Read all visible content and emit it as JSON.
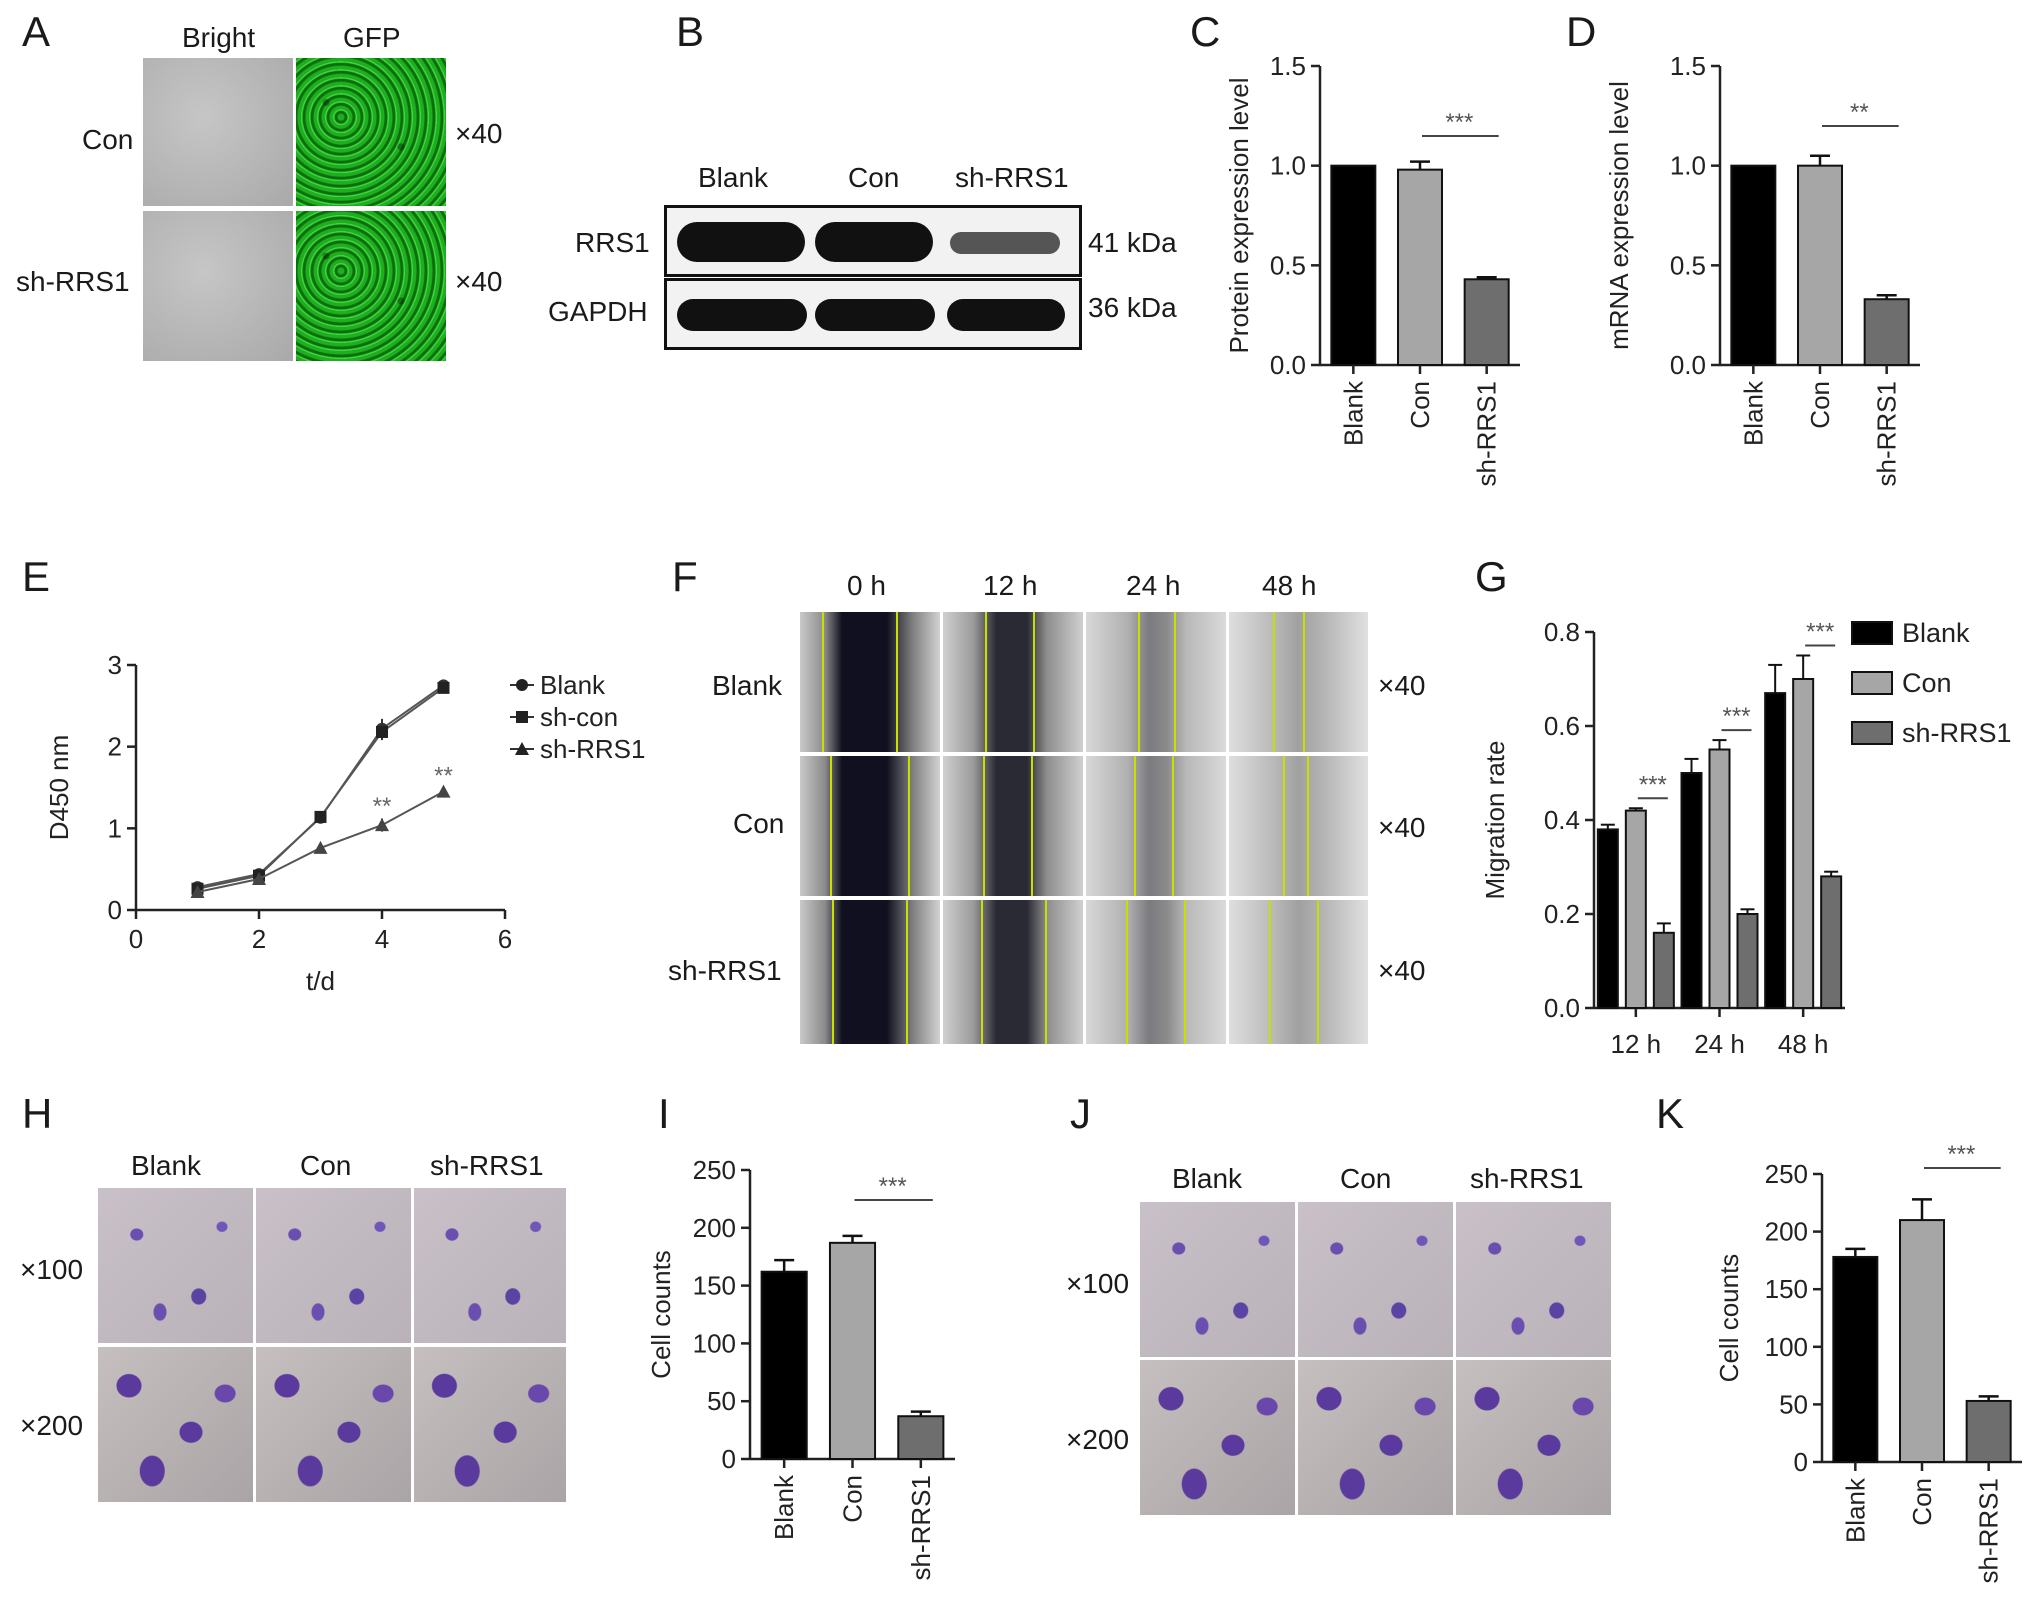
{
  "panel_letters": [
    "A",
    "B",
    "C",
    "D",
    "E",
    "F",
    "G",
    "H",
    "I",
    "J",
    "K"
  ],
  "A": {
    "col_headers": [
      "Bright",
      "GFP"
    ],
    "row_labels": [
      "Con",
      "sh-RRS1"
    ],
    "magnification": [
      "×40",
      "×40"
    ]
  },
  "B": {
    "lane_labels": [
      "Blank",
      "Con",
      "sh-RRS1"
    ],
    "protein_labels": [
      "RRS1",
      "GAPDH"
    ],
    "kda_labels": [
      "41 kDa",
      "36 kDa"
    ]
  },
  "F": {
    "col_headers": [
      "0 h",
      "12 h",
      "24 h",
      "48 h"
    ],
    "row_labels": [
      "Blank",
      "Con",
      "sh-RRS1"
    ],
    "magnification": [
      "×40",
      "×40",
      "×40"
    ]
  },
  "H": {
    "col_headers": [
      "Blank",
      "Con",
      "sh-RRS1"
    ],
    "row_labels": [
      "×100",
      "×200"
    ]
  },
  "J": {
    "col_headers": [
      "Blank",
      "Con",
      "sh-RRS1"
    ],
    "row_labels": [
      "×100",
      "×200"
    ]
  },
  "chart_data": [
    {
      "panel": "C",
      "type": "bar",
      "categories": [
        "Blank",
        "Con",
        "sh-RRS1"
      ],
      "values": [
        1.0,
        0.98,
        0.43
      ],
      "errors": [
        0,
        0.04,
        0.01
      ],
      "colors": [
        "#000000",
        "#a6a6a6",
        "#6e6e6e"
      ],
      "ylabel": "Protein expression level",
      "ylim": [
        0,
        1.5
      ],
      "yticks": [
        "0.0",
        "0.5",
        "1.0",
        "1.5"
      ],
      "significance": [
        {
          "from": 1,
          "to": 2,
          "label": "***"
        }
      ]
    },
    {
      "panel": "D",
      "type": "bar",
      "categories": [
        "Blank",
        "Con",
        "sh-RRS1"
      ],
      "values": [
        1.0,
        1.0,
        0.33
      ],
      "errors": [
        0,
        0.05,
        0.02
      ],
      "colors": [
        "#000000",
        "#a6a6a6",
        "#6e6e6e"
      ],
      "ylabel": "mRNA expression level",
      "ylim": [
        0,
        1.5
      ],
      "yticks": [
        "0.0",
        "0.5",
        "1.0",
        "1.5"
      ],
      "significance": [
        {
          "from": 1,
          "to": 2,
          "label": "**"
        }
      ]
    },
    {
      "panel": "E",
      "type": "line",
      "xlabel": "t/d",
      "ylabel": "D450 nm",
      "xlim": [
        0,
        6
      ],
      "ylim": [
        0,
        3
      ],
      "xticks": [
        "0",
        "2",
        "4",
        "6"
      ],
      "yticks": [
        "0",
        "1",
        "2",
        "3"
      ],
      "legend_position": "right",
      "series": [
        {
          "name": "Blank",
          "marker": "circle",
          "x": [
            1,
            2,
            3,
            4,
            5
          ],
          "y": [
            0.28,
            0.44,
            1.13,
            2.22,
            2.75
          ],
          "err": [
            0.03,
            0.03,
            0.04,
            0.12,
            0.07
          ]
        },
        {
          "name": "sh-con",
          "marker": "square",
          "x": [
            1,
            2,
            3,
            4,
            5
          ],
          "y": [
            0.26,
            0.42,
            1.14,
            2.18,
            2.72
          ],
          "err": [
            0.03,
            0.03,
            0.04,
            0.1,
            0.07
          ]
        },
        {
          "name": "sh-RRS1",
          "marker": "triangle",
          "x": [
            1,
            2,
            3,
            4,
            5
          ],
          "y": [
            0.22,
            0.38,
            0.76,
            1.04,
            1.45
          ],
          "err": [
            0.03,
            0.03,
            0.06,
            0.08,
            0.02
          ]
        }
      ],
      "annotations": [
        {
          "x": 4,
          "y": 1.35,
          "label": "**"
        },
        {
          "x": 5,
          "y": 1.72,
          "label": "**"
        }
      ]
    },
    {
      "panel": "G",
      "type": "bar",
      "categories": [
        "12 h",
        "24 h",
        "48 h"
      ],
      "ylabel": "Migration rate",
      "ylim": [
        0,
        0.8
      ],
      "yticks": [
        "0.0",
        "0.2",
        "0.4",
        "0.6",
        "0.8"
      ],
      "legend_position": "right",
      "series": [
        {
          "name": "Blank",
          "color": "#000000",
          "values": [
            0.38,
            0.5,
            0.67
          ],
          "errors": [
            0.01,
            0.03,
            0.06
          ]
        },
        {
          "name": "Con",
          "color": "#a6a6a6",
          "values": [
            0.42,
            0.55,
            0.7
          ],
          "errors": [
            0.005,
            0.02,
            0.05
          ]
        },
        {
          "name": "sh-RRS1",
          "color": "#6e6e6e",
          "values": [
            0.16,
            0.2,
            0.28
          ],
          "errors": [
            0.02,
            0.01,
            0.01
          ]
        }
      ],
      "significance": [
        {
          "group": 0,
          "label": "***"
        },
        {
          "group": 1,
          "label": "***"
        },
        {
          "group": 2,
          "label": "***"
        }
      ]
    },
    {
      "panel": "I",
      "type": "bar",
      "categories": [
        "Blank",
        "Con",
        "sh-RRS1"
      ],
      "values": [
        162,
        187,
        37
      ],
      "errors": [
        10,
        6,
        4
      ],
      "colors": [
        "#000000",
        "#a6a6a6",
        "#6e6e6e"
      ],
      "ylabel": "Cell counts",
      "ylim": [
        0,
        250
      ],
      "yticks": [
        "0",
        "50",
        "100",
        "150",
        "200",
        "250"
      ],
      "significance": [
        {
          "from": 1,
          "to": 2,
          "label": "***"
        }
      ]
    },
    {
      "panel": "K",
      "type": "bar",
      "categories": [
        "Blank",
        "Con",
        "sh-RRS1"
      ],
      "values": [
        178,
        210,
        53
      ],
      "errors": [
        7,
        18,
        4
      ],
      "colors": [
        "#000000",
        "#a6a6a6",
        "#6e6e6e"
      ],
      "ylabel": "Cell counts",
      "ylim": [
        0,
        250
      ],
      "yticks": [
        "0",
        "50",
        "100",
        "150",
        "200",
        "250"
      ],
      "significance": [
        {
          "from": 1,
          "to": 2,
          "label": "***"
        }
      ]
    }
  ]
}
